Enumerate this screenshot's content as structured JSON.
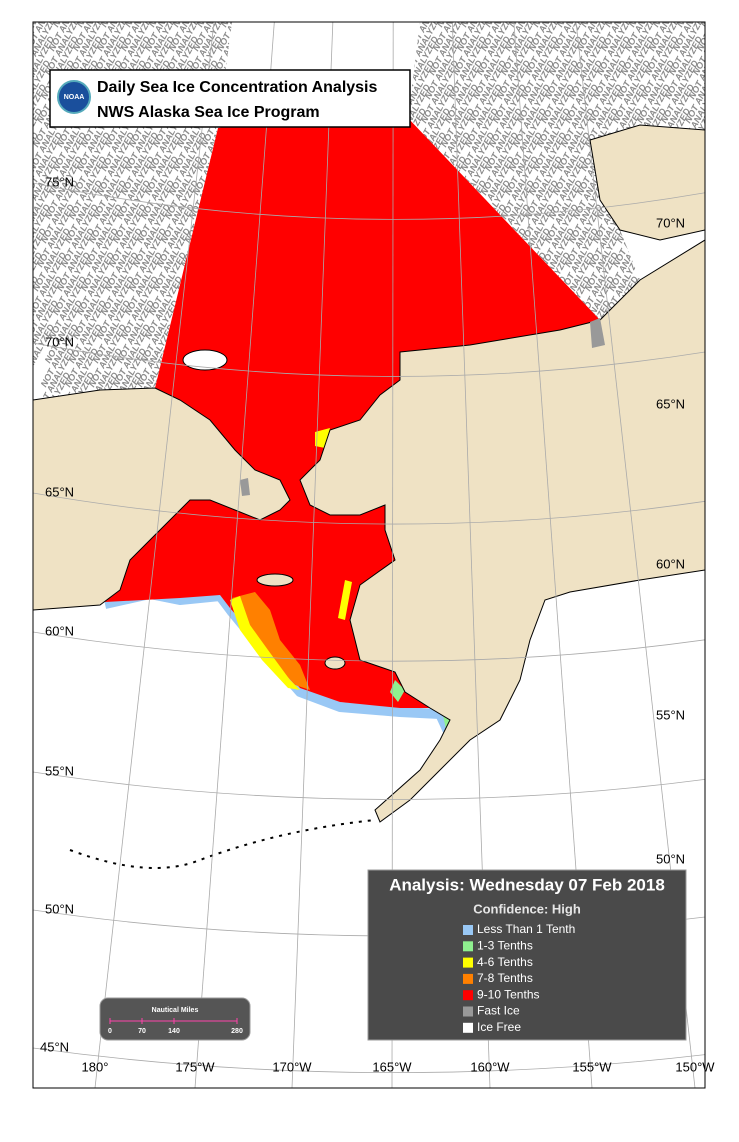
{
  "header": {
    "title": "Daily Sea Ice Concentration Analysis",
    "subtitle": "NWS Alaska Sea Ice Program",
    "logo": "NOAA"
  },
  "map": {
    "not_analyzed": "NOT ANALYZED",
    "lat_labels_left": [
      "75°N",
      "70°N",
      "65°N",
      "60°N",
      "55°N",
      "50°N",
      "45°N"
    ],
    "lat_labels_right": [
      "70°N",
      "65°N",
      "60°N",
      "55°N",
      "50°N"
    ],
    "lon_labels": [
      "180°",
      "175°W",
      "170°W",
      "165°W",
      "160°W",
      "155°W",
      "150°W"
    ]
  },
  "legend": {
    "analysis": "Analysis: Wednesday 07 Feb 2018",
    "confidence": "Confidence: High",
    "items": [
      {
        "label": "Less Than 1 Tenth",
        "color": "#99c8f5"
      },
      {
        "label": "1-3 Tenths",
        "color": "#8ff08f"
      },
      {
        "label": "4-6 Tenths",
        "color": "#ffff00"
      },
      {
        "label": "7-8 Tenths",
        "color": "#ff8000"
      },
      {
        "label": "9-10 Tenths",
        "color": "#ff0000"
      },
      {
        "label": "Fast Ice",
        "color": "#999999"
      },
      {
        "label": "Ice Free",
        "color": "#ffffff"
      }
    ]
  },
  "scale": {
    "title": "Nautical Miles",
    "ticks": [
      "0",
      "70",
      "140",
      "280"
    ]
  }
}
